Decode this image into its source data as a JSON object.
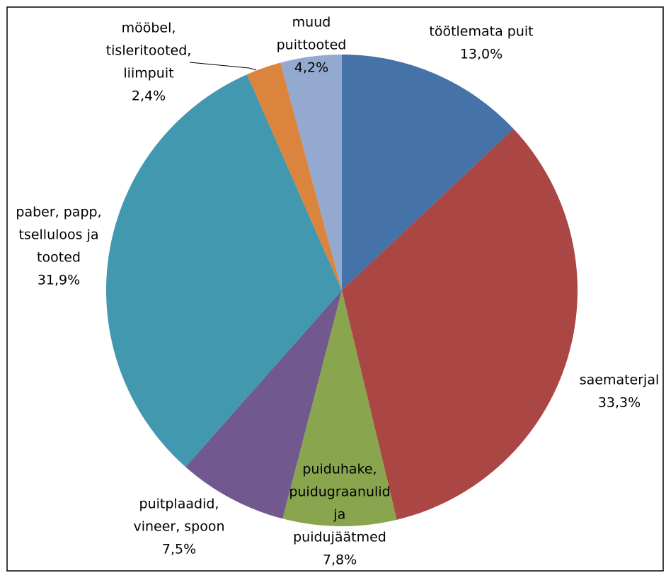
{
  "chart_data": {
    "type": "pie",
    "categories": [
      [
        "töötlemata puit"
      ],
      [
        "saematerjal"
      ],
      [
        "puiduhake,",
        "puidugraanulid",
        "ja",
        "puidujäätmed"
      ],
      [
        "puitplaadid,",
        "vineer, spoon"
      ],
      [
        "paber, papp,",
        "tselluloos ja",
        "tooted"
      ],
      [
        "mööbel,",
        "tisleritooted,",
        "liimpuit"
      ],
      [
        "muud",
        "puittooted"
      ]
    ],
    "values": [
      13.0,
      33.3,
      7.8,
      7.5,
      31.9,
      2.4,
      4.2
    ],
    "value_labels": [
      "13,0%",
      "33,3%",
      "7,8%",
      "7,5%",
      "31,9%",
      "2,4%",
      "4,2%"
    ],
    "colors": [
      "#4572a7",
      "#aa4643",
      "#89a54e",
      "#71588f",
      "#4198af",
      "#db843d",
      "#93a9cf"
    ]
  }
}
